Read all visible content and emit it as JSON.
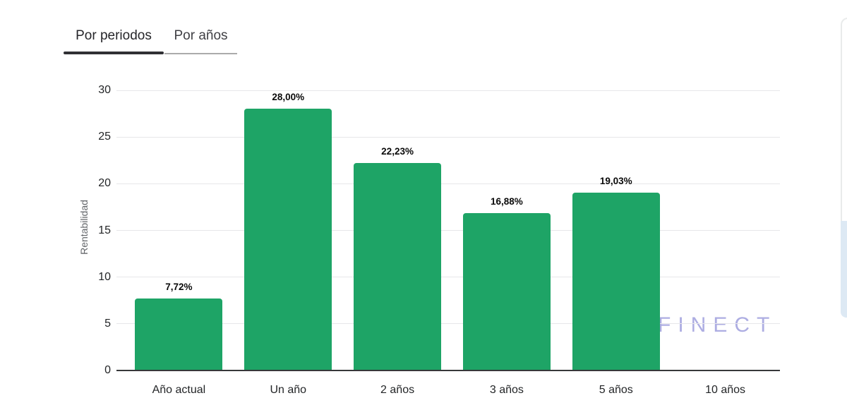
{
  "tabs": {
    "active_index": 0,
    "items": [
      {
        "label": "Por periodos"
      },
      {
        "label": "Por años"
      }
    ]
  },
  "chart_data": {
    "type": "bar",
    "title": "",
    "xlabel": "",
    "ylabel": "Rentabilidad",
    "categories": [
      "Año actual",
      "Un año",
      "2 años",
      "3 años",
      "5 años",
      "10 años"
    ],
    "values": [
      7.72,
      28.0,
      22.23,
      16.88,
      19.03,
      null
    ],
    "value_labels": [
      "7,72%",
      "28,00%",
      "22,23%",
      "16,88%",
      "19,03%",
      ""
    ],
    "yticks": [
      0,
      5,
      10,
      15,
      20,
      25,
      30
    ],
    "ylim": [
      0,
      30
    ],
    "grid": "horizontal",
    "legend": "none",
    "bar_color": "#1ea466"
  },
  "watermark": {
    "text": "FINECT",
    "color": "#a9a9e1"
  }
}
